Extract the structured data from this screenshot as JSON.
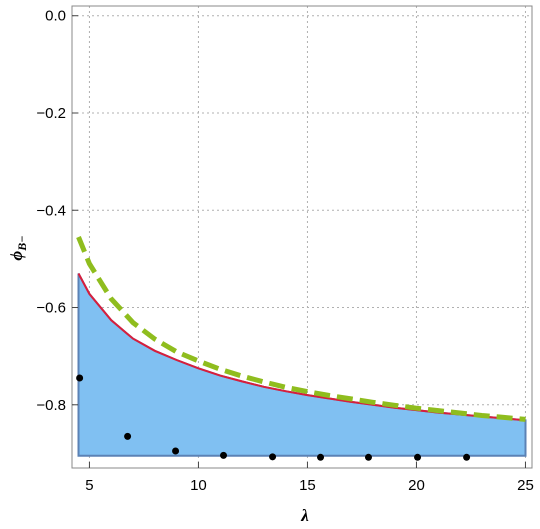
{
  "chart_data": {
    "type": "area",
    "xlabel": "λ",
    "ylabel": "ϕ",
    "ylabel_sub": "B−",
    "xlim": [
      4.2,
      25.3
    ],
    "ylim": [
      -0.93,
      0.02
    ],
    "x_ticks": [
      5,
      10,
      15,
      20,
      25
    ],
    "x_tick_labels": [
      "5",
      "10",
      "15",
      "20",
      "25"
    ],
    "y_ticks": [
      0.0,
      -0.2,
      -0.4,
      -0.6,
      -0.8
    ],
    "y_tick_labels": [
      "0.0",
      "−0.2",
      "−0.4",
      "−0.6",
      "−0.8"
    ],
    "grid": true,
    "grid_x": [
      5,
      10,
      15,
      20,
      25
    ],
    "grid_y": [
      0.0,
      -0.2,
      -0.4,
      -0.6,
      -0.8
    ],
    "region": {
      "x": [
        4.5,
        5,
        6,
        7,
        8,
        9,
        10,
        11,
        12,
        13,
        14,
        15,
        16,
        17,
        18,
        19,
        20,
        21,
        22,
        23,
        24,
        25
      ],
      "upper": [
        -0.53,
        -0.572,
        -0.626,
        -0.664,
        -0.689,
        -0.708,
        -0.725,
        -0.74,
        -0.752,
        -0.763,
        -0.772,
        -0.78,
        -0.787,
        -0.794,
        -0.8,
        -0.806,
        -0.811,
        -0.816,
        -0.82,
        -0.824,
        -0.828,
        -0.832
      ],
      "lower": -0.905
    },
    "series": [
      {
        "style": "solid",
        "color": "#d81e3c",
        "x": [
          4.5,
          5,
          6,
          7,
          8,
          9,
          10,
          11,
          12,
          13,
          14,
          15,
          16,
          17,
          18,
          19,
          20,
          21,
          22,
          23,
          24,
          25
        ],
        "y": [
          -0.53,
          -0.572,
          -0.626,
          -0.664,
          -0.689,
          -0.708,
          -0.725,
          -0.74,
          -0.752,
          -0.763,
          -0.772,
          -0.78,
          -0.787,
          -0.794,
          -0.8,
          -0.806,
          -0.811,
          -0.816,
          -0.82,
          -0.824,
          -0.828,
          -0.832
        ]
      },
      {
        "style": "dashed",
        "color": "#8fbd1e",
        "x": [
          4.5,
          5,
          6,
          7,
          8,
          9,
          10,
          11,
          12,
          13,
          14,
          15,
          16,
          17,
          18,
          19,
          20,
          21,
          22,
          23,
          24,
          25
        ],
        "y": [
          -0.455,
          -0.51,
          -0.582,
          -0.631,
          -0.665,
          -0.691,
          -0.71,
          -0.727,
          -0.741,
          -0.753,
          -0.764,
          -0.773,
          -0.781,
          -0.788,
          -0.795,
          -0.801,
          -0.807,
          -0.812,
          -0.817,
          -0.822,
          -0.826,
          -0.83
        ]
      },
      {
        "style": "points",
        "color": "#000000",
        "x": [
          4.55,
          6.75,
          8.95,
          11.15,
          13.4,
          15.6,
          17.8,
          20.05,
          22.3
        ],
        "y": [
          -0.745,
          -0.865,
          -0.895,
          -0.904,
          -0.907,
          -0.908,
          -0.908,
          -0.908,
          -0.908
        ]
      }
    ],
    "colors": {
      "fill": "#80c0f2",
      "fill_edge": "#5b82b5",
      "grid": "#b0b0b0",
      "frame": "#888888"
    }
  }
}
